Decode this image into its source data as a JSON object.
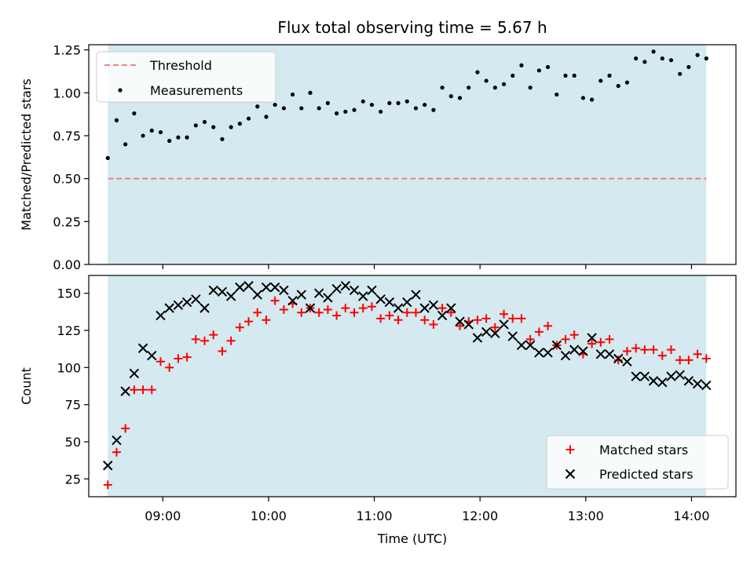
{
  "chart_data": [
    {
      "type": "scatter",
      "title": "Flux total observing time = 5.67 h",
      "ylabel": "Matched/Predicted stars",
      "ylim": [
        0,
        1.28
      ],
      "yticks": [
        "0.00",
        "0.25",
        "0.50",
        "0.75",
        "1.00",
        "1.25"
      ],
      "xlim_hours": [
        8.3,
        14.42
      ],
      "shaded_region": [
        8.48,
        14.14
      ],
      "shade_color": "#d4eaf0",
      "threshold": {
        "name": "Threshold",
        "value": 0.5,
        "color": "#f08080"
      },
      "legend": [
        "Threshold",
        "Measurements"
      ],
      "legend_position": "upper left",
      "series": [
        {
          "name": "Measurements",
          "color": "#000000",
          "values": [
            0.62,
            0.84,
            0.7,
            0.88,
            0.75,
            0.78,
            0.77,
            0.72,
            0.74,
            0.74,
            0.81,
            0.83,
            0.8,
            0.73,
            0.8,
            0.82,
            0.85,
            0.92,
            0.86,
            0.93,
            0.91,
            0.99,
            0.91,
            1.0,
            0.91,
            0.94,
            0.88,
            0.89,
            0.9,
            0.95,
            0.93,
            0.89,
            0.94,
            0.94,
            0.95,
            0.91,
            0.93,
            0.9,
            1.03,
            0.98,
            0.97,
            1.03,
            1.12,
            1.07,
            1.03,
            1.05,
            1.1,
            1.16,
            1.03,
            1.13,
            1.15,
            0.99,
            1.1,
            1.1,
            0.97,
            0.96,
            1.07,
            1.1,
            1.04,
            1.06,
            1.2,
            1.18,
            1.24,
            1.2,
            1.19,
            1.11,
            1.15,
            1.22,
            1.2
          ]
        }
      ]
    },
    {
      "type": "scatter",
      "xlabel": "Time (UTC)",
      "ylabel": "Count",
      "ylim": [
        13,
        162
      ],
      "yticks": [
        "25",
        "50",
        "75",
        "100",
        "125",
        "150"
      ],
      "xticks": [
        "09:00",
        "10:00",
        "11:00",
        "12:00",
        "13:00",
        "14:00"
      ],
      "xlim_hours": [
        8.3,
        14.42
      ],
      "shaded_region": [
        8.48,
        14.14
      ],
      "shade_color": "#d4eaf0",
      "legend": [
        "Matched stars",
        "Predicted stars"
      ],
      "legend_position": "lower right",
      "series": [
        {
          "name": "Matched stars",
          "color": "#ff0000",
          "values": [
            21,
            43,
            59,
            85,
            85,
            85,
            104,
            100,
            106,
            107,
            119,
            118,
            122,
            111,
            118,
            127,
            131,
            137,
            132,
            145,
            139,
            143,
            137,
            140,
            137,
            139,
            135,
            140,
            137,
            140,
            141,
            133,
            135,
            132,
            137,
            137,
            132,
            129,
            140,
            137,
            128,
            131,
            132,
            133,
            127,
            136,
            133,
            133,
            119,
            124,
            128,
            115,
            119,
            122,
            109,
            116,
            117,
            119,
            105,
            111,
            113,
            112,
            112,
            108,
            112,
            105,
            105,
            109,
            106
          ]
        },
        {
          "name": "Predicted stars",
          "color": "#000000",
          "values": [
            34,
            51,
            84,
            96,
            113,
            108,
            135,
            140,
            142,
            144,
            146,
            140,
            152,
            151,
            148,
            154,
            155,
            149,
            154,
            154,
            152,
            145,
            149,
            140,
            150,
            147,
            153,
            155,
            152,
            148,
            152,
            146,
            144,
            140,
            144,
            149,
            140,
            142,
            135,
            140,
            131,
            129,
            120,
            124,
            123,
            129,
            121,
            115,
            115,
            110,
            110,
            115,
            108,
            112,
            111,
            120,
            109,
            109,
            106,
            104,
            94,
            94,
            91,
            90,
            94,
            95,
            91,
            89,
            88
          ]
        }
      ]
    }
  ]
}
